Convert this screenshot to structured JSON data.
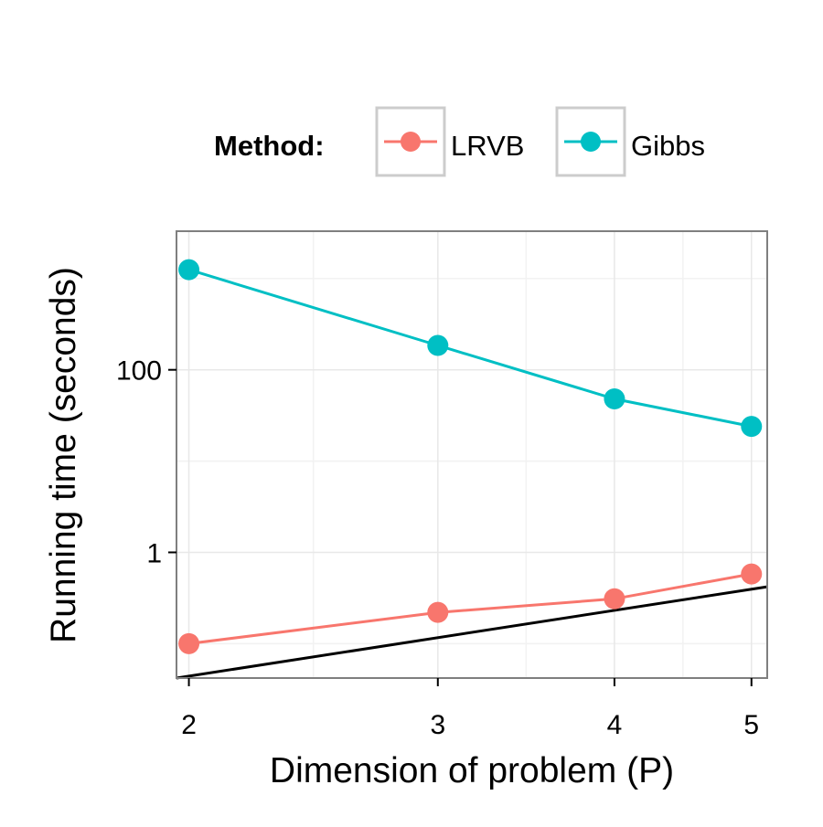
{
  "chart_data": {
    "type": "line",
    "xlabel": "Dimension of problem (P)",
    "ylabel": "Running time (seconds)",
    "x_scale": "log",
    "y_scale": "log10",
    "xlim": [
      1.96,
      5.13
    ],
    "ylim": [
      0.042,
      3300
    ],
    "x_ticks": [
      2,
      3,
      4,
      5
    ],
    "x_tick_labels": [
      "2",
      "3",
      "4",
      "5"
    ],
    "y_ticks": [
      1,
      100
    ],
    "y_tick_labels": [
      "1",
      "100"
    ],
    "legend": {
      "title": "Method:",
      "position": "top",
      "entries": [
        "LRVB",
        "Gibbs"
      ]
    },
    "series": [
      {
        "name": "LRVB",
        "color": "#f8766d",
        "x": [
          2,
          3,
          4,
          5
        ],
        "y": [
          0.1,
          0.22,
          0.31,
          0.58
        ]
      },
      {
        "name": "Gibbs",
        "color": "#00bfc4",
        "x": [
          2,
          3,
          4,
          5
        ],
        "y": [
          1250,
          185,
          48,
          24
        ]
      }
    ],
    "reference_line": {
      "name": "reference",
      "color": "#000000",
      "x": [
        1.96,
        5.13
      ],
      "y": [
        0.042,
        0.42
      ]
    },
    "grid": true
  }
}
